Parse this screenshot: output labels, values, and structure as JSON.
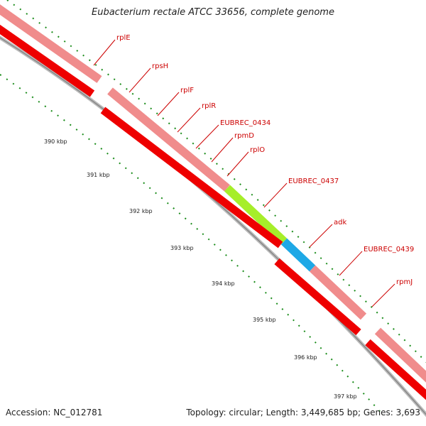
{
  "header": {
    "title": "Eubacterium rectale ATCC 33656, complete genome"
  },
  "footer": {
    "accession": "Accession: NC_012781",
    "topology": "Topology: circular; Length: 3,449,685 bp; Genes: 3,693"
  },
  "ticks": [
    "390 kbp",
    "391 kbp",
    "392 kbp",
    "393 kbp",
    "394 kbp",
    "395 kbp",
    "396 kbp",
    "397 kbp"
  ],
  "genes": [
    "rplE",
    "rpsH",
    "rplF",
    "rplR",
    "EUBREC_0434",
    "rpmD",
    "rplO",
    "EUBREC_0437",
    "adk",
    "EUBREC_0439",
    "rpmJ"
  ],
  "colors": {
    "pink": "#f08c8c",
    "red": "#ee0000",
    "green": "#a6ee2a",
    "blue": "#1ea8e6",
    "line": "#999999",
    "tick": "#1a8c1a",
    "label": "#cc0000"
  }
}
